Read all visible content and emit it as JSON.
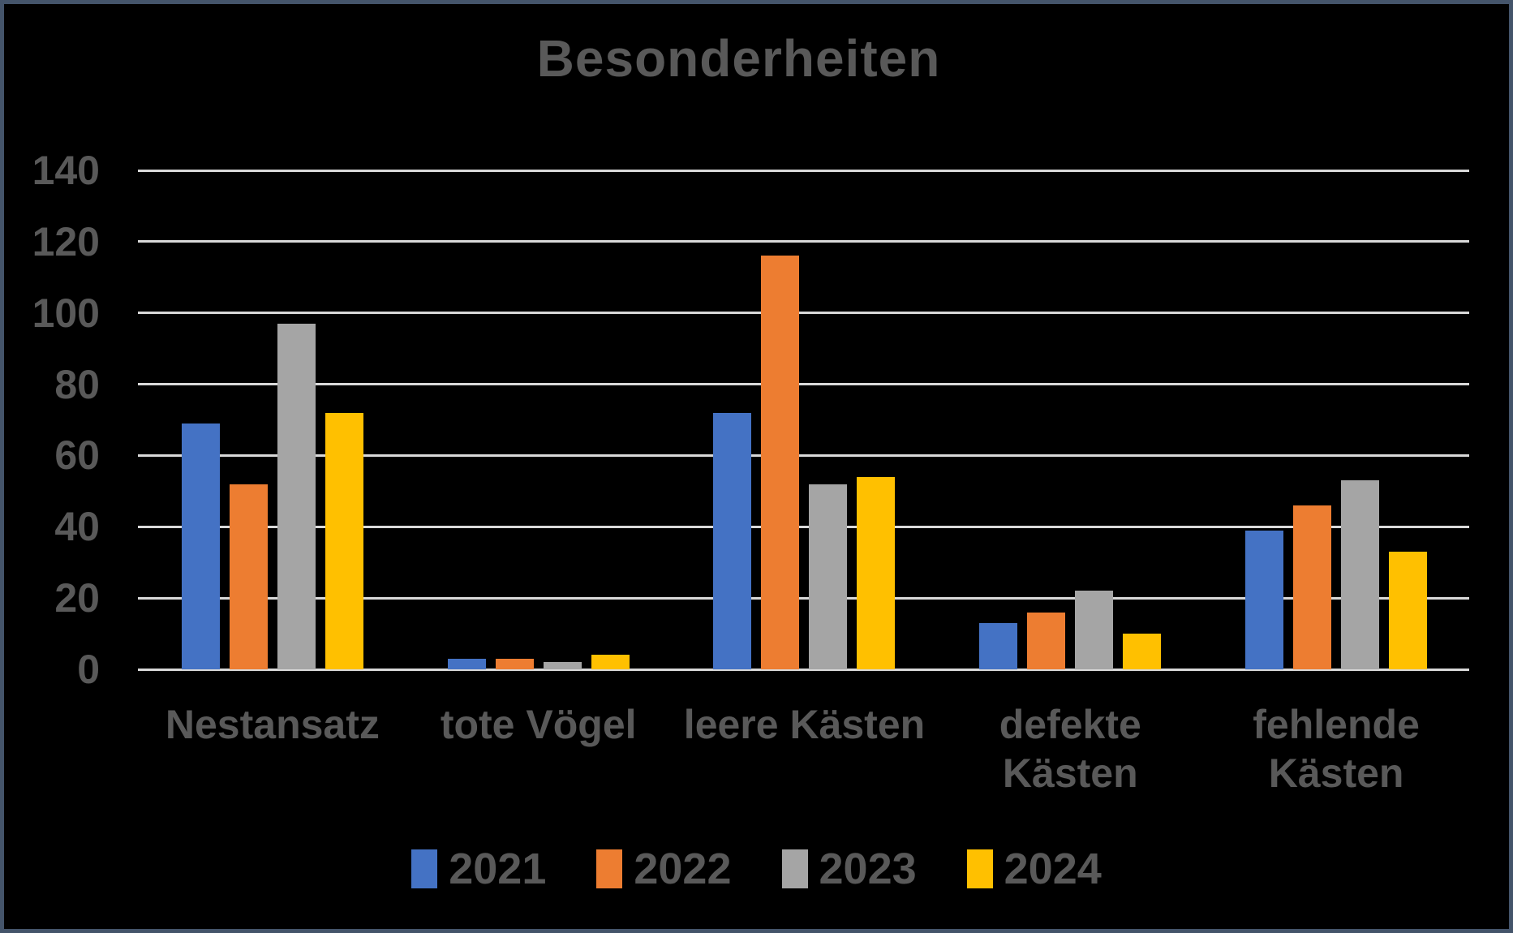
{
  "chart_data": {
    "type": "bar",
    "title": "Besonderheiten",
    "categories": [
      "Nestansatz",
      "tote Vögel",
      "leere Kästen",
      "defekte Kästen",
      "fehlende Kästen"
    ],
    "category_lines": [
      [
        "Nestansatz"
      ],
      [
        "tote Vögel"
      ],
      [
        "leere Kästen"
      ],
      [
        "defekte",
        "Kästen"
      ],
      [
        "fehlende",
        "Kästen"
      ]
    ],
    "series": [
      {
        "name": "2021",
        "color": "#4472C4",
        "values": [
          69,
          3,
          72,
          13,
          39
        ]
      },
      {
        "name": "2022",
        "color": "#ED7D31",
        "values": [
          52,
          3,
          116,
          16,
          46
        ]
      },
      {
        "name": "2023",
        "color": "#A5A5A5",
        "values": [
          97,
          2,
          52,
          22,
          53
        ]
      },
      {
        "name": "2024",
        "color": "#FFC000",
        "values": [
          72,
          4,
          54,
          10,
          33
        ]
      }
    ],
    "xlabel": "",
    "ylabel": "",
    "ylim": [
      0,
      140
    ],
    "y_ticks": [
      0,
      20,
      40,
      60,
      80,
      100,
      120,
      140
    ],
    "grid": "horizontal",
    "legend_position": "bottom",
    "colors": {
      "text": "#595959",
      "gridline": "#D9D9D9",
      "background": "#000000",
      "border": "#44546A"
    }
  }
}
